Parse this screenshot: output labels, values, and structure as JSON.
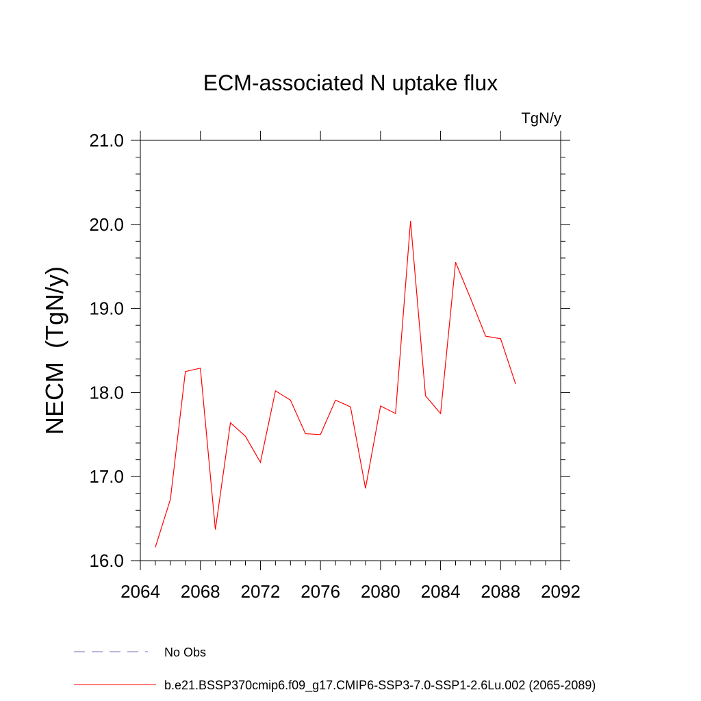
{
  "chart_data": {
    "type": "line",
    "title": "ECM-associated N uptake flux",
    "units": "TgN/y",
    "ylabel": "NECM  (TgN/y)",
    "xlabel": "",
    "xlim": [
      2064,
      2092
    ],
    "ylim": [
      16.0,
      21.0
    ],
    "x_ticks": [
      "2064",
      "2068",
      "2072",
      "2076",
      "2080",
      "2084",
      "2088",
      "2092"
    ],
    "y_ticks": [
      "16.0",
      "17.0",
      "18.0",
      "19.0",
      "20.0",
      "21.0"
    ],
    "grid": false,
    "legend_position": "bottom-left",
    "series": [
      {
        "name": "b.e21.BSSP370cmip6.f09_g17.CMIP6-SSP3-7.0-SSP1-2.6Lu.002 (2065-2089)",
        "color": "#ff0000",
        "style": "solid",
        "x": [
          2065,
          2066,
          2067,
          2068,
          2069,
          2070,
          2071,
          2072,
          2073,
          2074,
          2075,
          2076,
          2077,
          2078,
          2079,
          2080,
          2081,
          2082,
          2083,
          2084,
          2085,
          2086,
          2087,
          2088,
          2089
        ],
        "values": [
          16.16,
          16.73,
          18.25,
          18.29,
          16.37,
          17.64,
          17.48,
          17.17,
          18.02,
          17.91,
          17.51,
          17.5,
          17.91,
          17.83,
          16.86,
          17.84,
          17.75,
          20.04,
          17.96,
          17.75,
          19.55,
          19.12,
          18.67,
          18.64,
          18.1
        ]
      }
    ],
    "legend": [
      {
        "label": "No Obs",
        "color": "#7b68b8",
        "style": "dashed"
      },
      {
        "label": "b.e21.BSSP370cmip6.f09_g17.CMIP6-SSP3-7.0-SSP1-2.6Lu.002 (2065-2089)",
        "color": "#ff0000",
        "style": "solid"
      }
    ]
  }
}
